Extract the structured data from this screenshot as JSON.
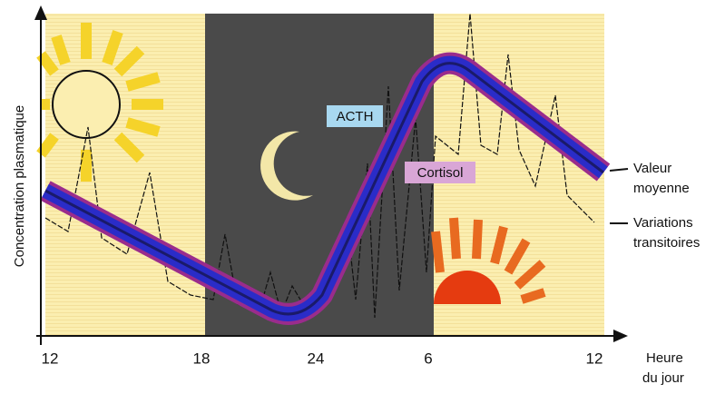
{
  "y_axis_label": "Concentration plasmatique",
  "x_axis": {
    "label_line1": "Heure",
    "label_line2": "du jour",
    "ticks": [
      "12",
      "18",
      "24",
      "6",
      "12"
    ]
  },
  "curve_labels": {
    "acth": "ACTH",
    "cortisol": "Cortisol"
  },
  "legend": {
    "mean_line1": "Valeur",
    "mean_line2": "moyenne",
    "variations_line1": "Variations",
    "variations_line2": "transitoires"
  }
}
